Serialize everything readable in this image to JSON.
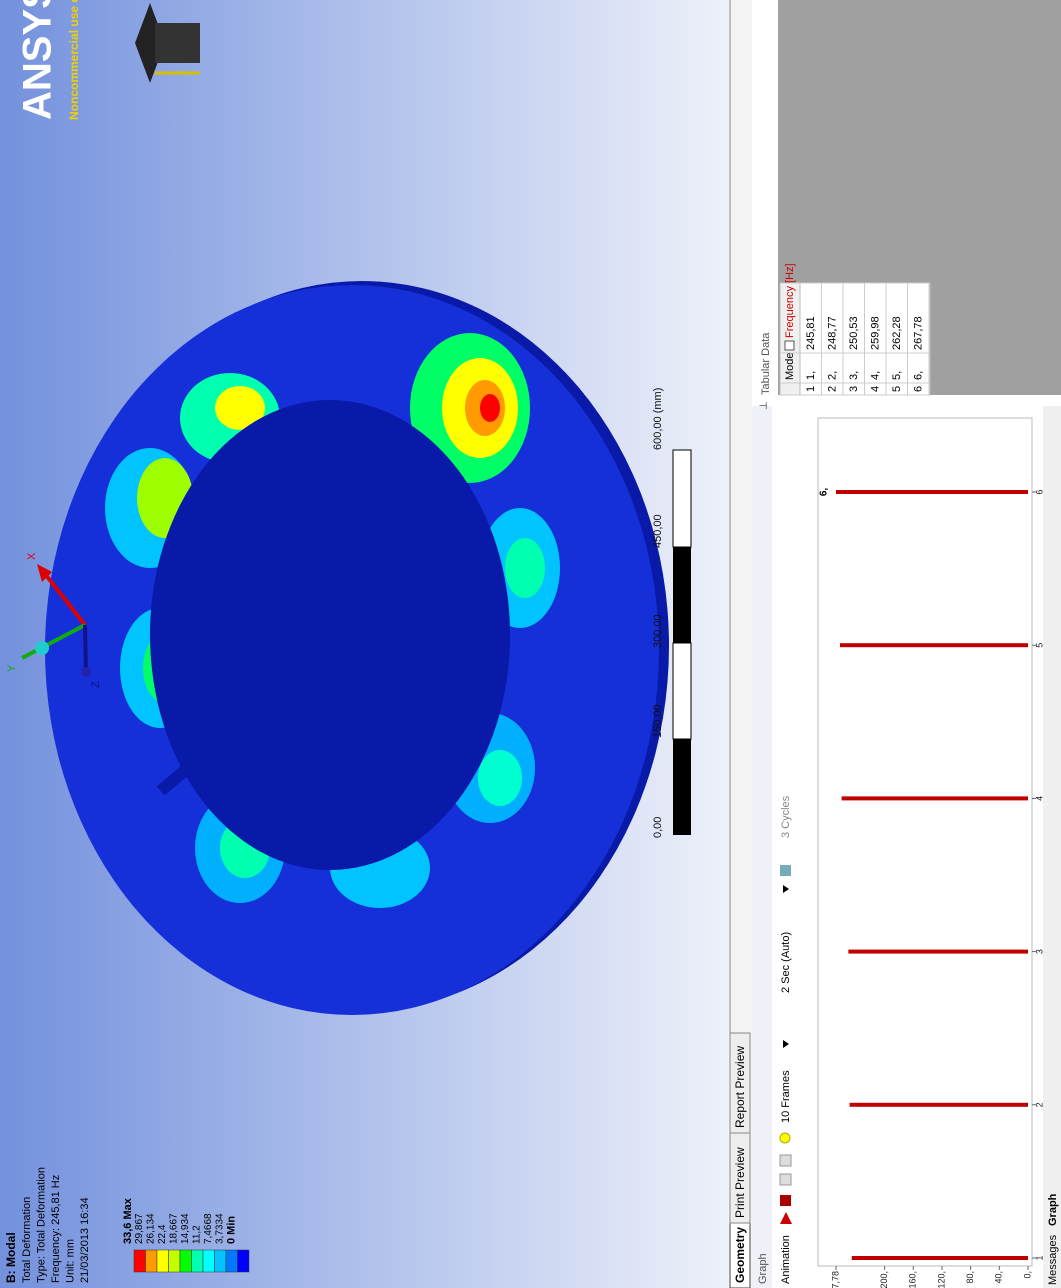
{
  "legend": {
    "title": "B: Modal",
    "lines": [
      "Total Deformation",
      "Type: Total Deformation",
      "Frequency: 245,81 Hz",
      "Unit: mm",
      "21/03/2013 16:34"
    ],
    "labels": [
      "33,6 Max",
      "29,867",
      "26,134",
      "22,4",
      "18,667",
      "14,934",
      "11,2",
      "7,4668",
      "3,7334",
      "0 Min"
    ],
    "colors": [
      "#ff0000",
      "#ff9a00",
      "#ffff00",
      "#c3ff00",
      "#00ff00",
      "#00ffae",
      "#00ffff",
      "#00c3ff",
      "#0078ff",
      "#0000ff"
    ]
  },
  "logo": {
    "name": "ANSYS",
    "note": "Noncommercial use only"
  },
  "triad": {
    "x": "X",
    "y": "Y",
    "z": "Z"
  },
  "scale_bar": [
    "0,00",
    "150,00",
    "300,00",
    "450,00",
    "600,00 (mm)"
  ],
  "view_tabs": [
    "Geometry",
    "Print Preview",
    "Report Preview"
  ],
  "graph_panel": {
    "title": "Graph",
    "toolbar": [
      "Animation",
      "10 Frames",
      "2 Sec (Auto)",
      "3 Cycles"
    ],
    "bottom_tabs": [
      "Messages",
      "Graph"
    ]
  },
  "chart_data": {
    "type": "bar",
    "x": [
      1,
      2,
      3,
      4,
      5,
      6
    ],
    "values": [
      245.81,
      248.77,
      250.53,
      259.98,
      262.28,
      267.78
    ],
    "color": "#c00000",
    "xlim": [
      1,
      6
    ],
    "xticks": [
      1,
      2,
      3,
      4,
      5,
      6
    ],
    "ylim": [
      0,
      267.78
    ],
    "yticks": [
      {
        "value": 0,
        "label": "0,"
      },
      {
        "value": 40,
        "label": "40,"
      },
      {
        "value": 80,
        "label": "80,"
      },
      {
        "value": 120,
        "label": "120,"
      },
      {
        "value": 160,
        "label": "160,"
      },
      {
        "value": 200,
        "label": "200,"
      },
      {
        "value": 267.78,
        "label": "267,78"
      }
    ],
    "annotation": "6,"
  },
  "table": {
    "title": "Tabular Data",
    "columns": [
      "Mode",
      "Frequency [Hz]"
    ],
    "rows": [
      [
        "1",
        "1,",
        "245,81"
      ],
      [
        "2",
        "2,",
        "248,77"
      ],
      [
        "3",
        "3,",
        "250,53"
      ],
      [
        "4",
        "4,",
        "259,98"
      ],
      [
        "5",
        "5,",
        "262,28"
      ],
      [
        "6",
        "6,",
        "267,78"
      ]
    ]
  }
}
